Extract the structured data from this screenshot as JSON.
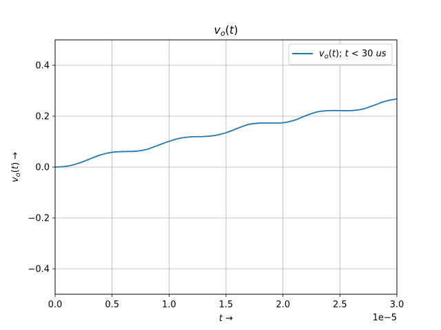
{
  "chart_data": {
    "type": "line",
    "title": "v_o(t)",
    "xlabel": "t →",
    "ylabel": "v_o(t) →",
    "x_offset_label": "1e−5",
    "xlim": [
      0,
      3.0
    ],
    "ylim": [
      -0.5,
      0.5
    ],
    "x_scale_exponent": -5,
    "xticks": [
      0.0,
      0.5,
      1.0,
      1.5,
      2.0,
      2.5,
      3.0
    ],
    "xtick_labels": [
      "0.0",
      "0.5",
      "1.0",
      "1.5",
      "2.0",
      "2.5",
      "3.0"
    ],
    "yticks": [
      -0.4,
      -0.2,
      0.0,
      0.2,
      0.4
    ],
    "ytick_labels": [
      "−0.4",
      "−0.2",
      "0.0",
      "0.2",
      "0.4"
    ],
    "grid": true,
    "legend_position": "top-right",
    "series": [
      {
        "name": "v_o(t); t < 30 us",
        "color": "#1f77b4",
        "x": [
          0.0,
          0.1,
          0.2,
          0.3,
          0.4,
          0.5,
          0.6,
          0.7,
          0.8,
          0.9,
          1.0,
          1.1,
          1.2,
          1.3,
          1.4,
          1.5,
          1.6,
          1.7,
          1.8,
          1.9,
          2.0,
          2.1,
          2.2,
          2.3,
          2.4,
          2.5,
          2.6,
          2.7,
          2.8,
          2.9,
          3.0
        ],
        "values": [
          0.0,
          0.003,
          0.014,
          0.031,
          0.048,
          0.058,
          0.061,
          0.062,
          0.069,
          0.085,
          0.101,
          0.114,
          0.119,
          0.12,
          0.124,
          0.135,
          0.152,
          0.168,
          0.173,
          0.173,
          0.174,
          0.184,
          0.202,
          0.217,
          0.222,
          0.222,
          0.222,
          0.228,
          0.243,
          0.259,
          0.268
        ]
      }
    ]
  }
}
